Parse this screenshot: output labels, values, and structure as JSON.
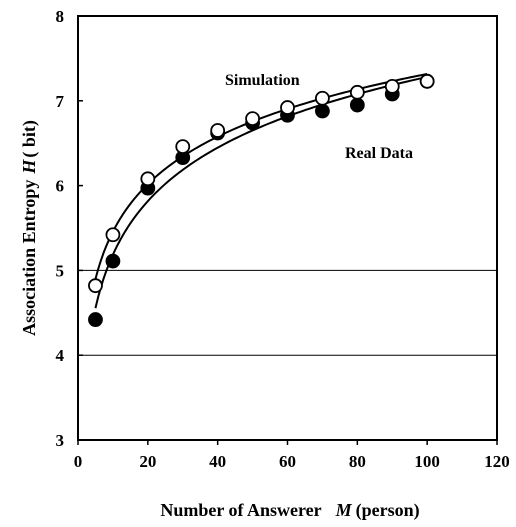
{
  "chart_data": {
    "type": "scatter",
    "xlabel": "Number of Answerer",
    "xlabel_var": "M",
    "xlabel_unit": "(person)",
    "ylabel": "Association  Entropy",
    "ylabel_var": "H",
    "ylabel_unit": "( bit)",
    "xlim": [
      0,
      120
    ],
    "ylim": [
      3,
      8
    ],
    "xticks": [
      "0",
      "20",
      "40",
      "60",
      "80",
      "100",
      "120"
    ],
    "yticks": [
      "3",
      "4",
      "5",
      "6",
      "7",
      "8"
    ],
    "gridlines_y": [
      4,
      5
    ],
    "series": [
      {
        "name": "Simulation",
        "marker": "open-circle",
        "x": [
          5,
          10,
          20,
          30,
          40,
          50,
          60,
          70,
          80,
          90,
          100
        ],
        "y": [
          4.82,
          5.42,
          6.08,
          6.46,
          6.65,
          6.79,
          6.92,
          7.03,
          7.1,
          7.17,
          7.23
        ],
        "fit_curve": true
      },
      {
        "name": "Real Data",
        "marker": "filled-circle",
        "x": [
          5,
          10,
          20,
          30,
          40,
          50,
          60,
          70,
          80,
          90,
          100
        ],
        "y": [
          4.42,
          5.11,
          5.97,
          6.33,
          6.62,
          6.74,
          6.83,
          6.88,
          6.95,
          7.08,
          7.23
        ],
        "fit_curve": true
      }
    ]
  },
  "colors": {
    "ink": "#000000",
    "background": "#ffffff"
  }
}
